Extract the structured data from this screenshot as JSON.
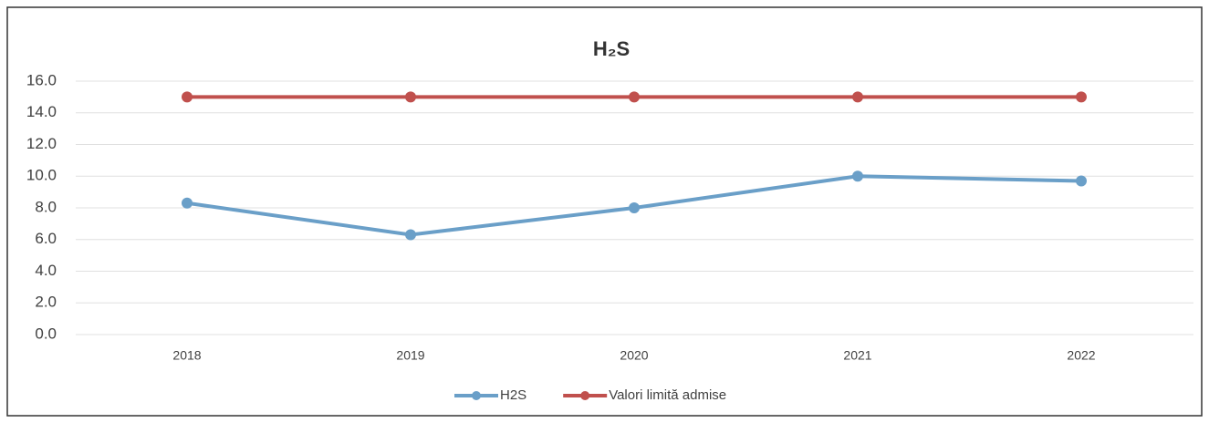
{
  "chart_data": {
    "type": "line",
    "title": "H₂S",
    "categories": [
      "2018",
      "2019",
      "2020",
      "2021",
      "2022"
    ],
    "series": [
      {
        "name": "H2S",
        "color": "#6a9fc8",
        "values": [
          8.3,
          6.3,
          8.0,
          10.0,
          9.7
        ]
      },
      {
        "name": "Valori limită admise",
        "color": "#c0504d",
        "values": [
          15,
          15,
          15,
          15,
          15
        ]
      }
    ],
    "ylim": [
      0,
      16
    ],
    "yticks": [
      {
        "value": 0,
        "label": "0.0"
      },
      {
        "value": 2,
        "label": "2.0"
      },
      {
        "value": 4,
        "label": "4.0"
      },
      {
        "value": 6,
        "label": "6.0"
      },
      {
        "value": 8,
        "label": "8.0"
      },
      {
        "value": 10,
        "label": "10.0"
      },
      {
        "value": 12,
        "label": "12.0"
      },
      {
        "value": 14,
        "label": "14.0"
      },
      {
        "value": 16,
        "label": "16.0"
      }
    ],
    "grid": true,
    "legend": "bottom"
  }
}
